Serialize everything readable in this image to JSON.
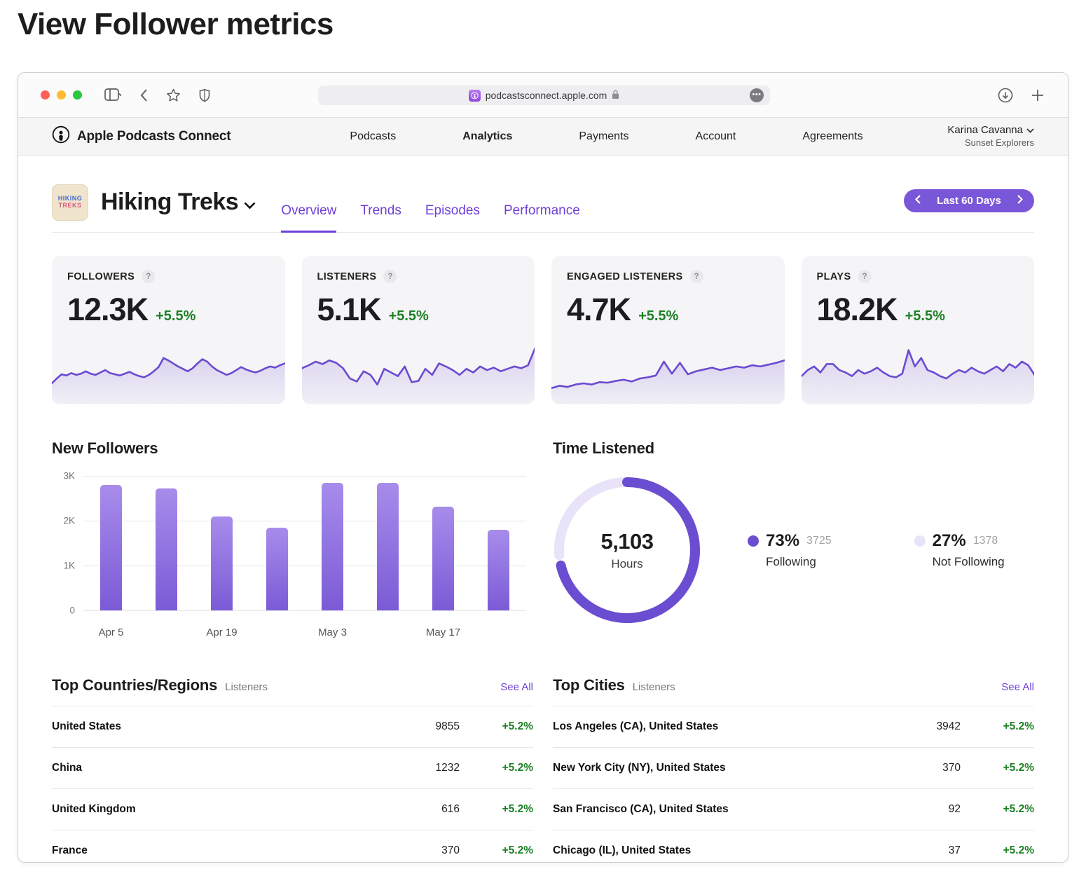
{
  "page_title": "View Follower metrics",
  "browser": {
    "url": "podcastsconnect.apple.com"
  },
  "nav": {
    "brand": "Apple Podcasts Connect",
    "items": [
      {
        "label": "Podcasts",
        "active": false
      },
      {
        "label": "Analytics",
        "active": true
      },
      {
        "label": "Payments",
        "active": false
      },
      {
        "label": "Account",
        "active": false
      },
      {
        "label": "Agreements",
        "active": false
      }
    ],
    "user": {
      "name": "Karina Cavanna",
      "org": "Sunset Explorers"
    }
  },
  "show": {
    "title": "Hiking Treks",
    "artwork_line1": "HIKING",
    "artwork_line2": "TREKS",
    "tabs": [
      {
        "label": "Overview",
        "active": true
      },
      {
        "label": "Trends",
        "active": false
      },
      {
        "label": "Episodes",
        "active": false
      },
      {
        "label": "Performance",
        "active": false
      }
    ],
    "date_range": "Last 60 Days"
  },
  "metrics_help": "?",
  "metrics": [
    {
      "label": "FOLLOWERS",
      "value": "12.3K",
      "delta": "+5.5%"
    },
    {
      "label": "LISTENERS",
      "value": "5.1K",
      "delta": "+5.5%"
    },
    {
      "label": "ENGAGED LISTENERS",
      "value": "4.7K",
      "delta": "+5.5%"
    },
    {
      "label": "PLAYS",
      "value": "18.2K",
      "delta": "+5.5%"
    }
  ],
  "chart_data": [
    {
      "id": "sparklines",
      "type": "line",
      "note": "60-day trend sparklines in the four metric cards; values are relative heights 0-100",
      "series": [
        {
          "name": "Followers",
          "values": [
            30,
            38,
            45,
            43,
            47,
            44,
            46,
            50,
            46,
            44,
            48,
            52,
            47,
            45,
            43,
            46,
            49,
            45,
            42,
            40,
            44,
            50,
            57,
            72,
            68,
            63,
            58,
            54,
            50,
            55,
            63,
            70,
            66,
            58,
            52,
            48,
            44,
            47,
            52,
            57,
            53,
            50,
            48,
            51,
            55,
            58,
            56,
            60,
            63
          ]
        },
        {
          "name": "Listeners",
          "values": [
            55,
            60,
            66,
            62,
            68,
            64,
            55,
            38,
            33,
            50,
            44,
            28,
            54,
            48,
            42,
            58,
            32,
            34,
            54,
            44,
            63,
            58,
            52,
            44,
            54,
            48,
            58,
            52,
            56,
            50,
            54,
            58,
            55,
            60,
            88
          ]
        },
        {
          "name": "Engaged Listeners",
          "values": [
            22,
            26,
            24,
            28,
            30,
            28,
            32,
            31,
            34,
            36,
            33,
            38,
            40,
            43,
            66,
            46,
            64,
            45,
            50,
            53,
            56,
            52,
            55,
            58,
            56,
            60,
            58,
            61,
            64,
            68
          ]
        },
        {
          "name": "Plays",
          "values": [
            42,
            52,
            58,
            48,
            62,
            62,
            52,
            48,
            42,
            52,
            46,
            50,
            56,
            48,
            42,
            40,
            46,
            85,
            58,
            72,
            52,
            48,
            42,
            38,
            46,
            52,
            48,
            56,
            50,
            46,
            52,
            58,
            50,
            62,
            56,
            66,
            60,
            44
          ]
        }
      ]
    },
    {
      "id": "new_followers",
      "type": "bar",
      "title": "New Followers",
      "categories": [
        "Apr 5",
        "",
        "Apr 19",
        "",
        "May 3",
        "",
        "May 17",
        ""
      ],
      "values": [
        2800,
        2725,
        2100,
        1850,
        2840,
        2840,
        2320,
        1800
      ],
      "yticks": [
        "3K",
        "2K",
        "1K",
        "0"
      ],
      "ylim": [
        0,
        3000
      ],
      "grid": true
    },
    {
      "id": "time_listened",
      "type": "pie",
      "title": "Time Listened",
      "center_value": "5,103",
      "center_label": "Hours",
      "slices": [
        {
          "label": "Following",
          "percent": 73,
          "percent_label": "73%",
          "value": 3725,
          "value_label": "3725",
          "color": "#6b4dd1"
        },
        {
          "label": "Not Following",
          "percent": 27,
          "percent_label": "27%",
          "value": 1378,
          "value_label": "1378",
          "color": "#e8e3f8"
        }
      ],
      "legend_position": "right"
    }
  ],
  "tables": {
    "countries": {
      "title": "Top Countries/Regions",
      "subtitle": "Listeners",
      "see_all": "See All",
      "rows": [
        {
          "name": "United States",
          "value": "9855",
          "delta": "+5.2%"
        },
        {
          "name": "China",
          "value": "1232",
          "delta": "+5.2%"
        },
        {
          "name": "United Kingdom",
          "value": "616",
          "delta": "+5.2%"
        },
        {
          "name": "France",
          "value": "370",
          "delta": "+5.2%"
        }
      ]
    },
    "cities": {
      "title": "Top Cities",
      "subtitle": "Listeners",
      "see_all": "See All",
      "rows": [
        {
          "name": "Los Angeles (CA), United States",
          "value": "3942",
          "delta": "+5.2%"
        },
        {
          "name": "New York City (NY), United States",
          "value": "370",
          "delta": "+5.2%"
        },
        {
          "name": "San Francisco (CA), United States",
          "value": "92",
          "delta": "+5.2%"
        },
        {
          "name": "Chicago (IL), United States",
          "value": "37",
          "delta": "+5.2%"
        }
      ]
    }
  },
  "colors": {
    "accent": "#7a56d8",
    "accent_text": "#6e40d8",
    "green": "#1d8025",
    "line": "#6b4ad0",
    "bar_top": "#a78ceb",
    "bar_bottom": "#7b5bd6",
    "lavender": "#e8e3f8"
  }
}
